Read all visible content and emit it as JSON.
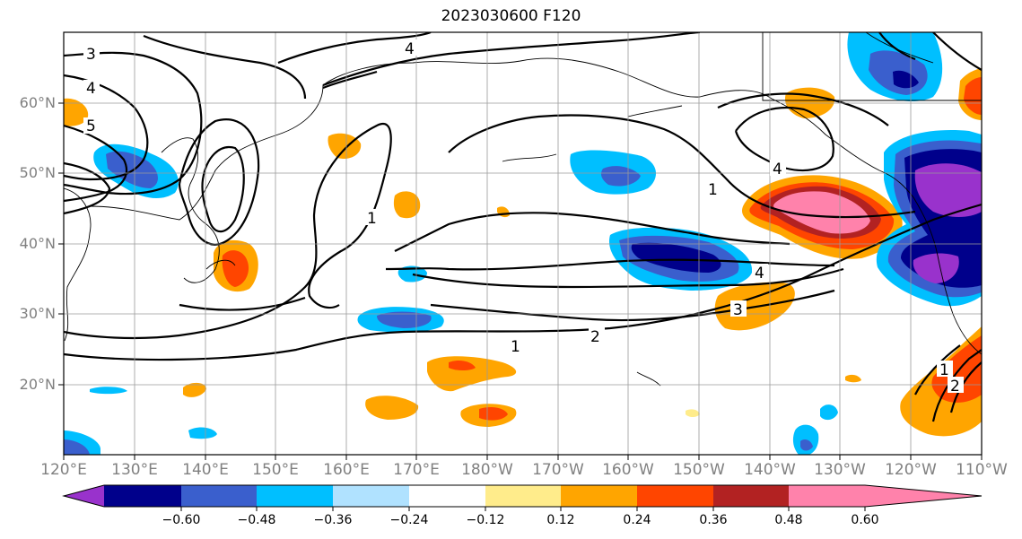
{
  "title": "2023030600 F120",
  "lat_labels": [
    "60°N",
    "50°N",
    "40°N",
    "30°N",
    "20°N"
  ],
  "lon_labels": [
    "120°E",
    "130°E",
    "140°E",
    "150°E",
    "160°E",
    "170°E",
    "180°W",
    "170°W",
    "160°W",
    "150°W",
    "140°W",
    "130°W",
    "120°W",
    "110°W"
  ],
  "contour_labels": [
    "3",
    "4",
    "5",
    "4",
    "1",
    "1",
    "2",
    "1",
    "4",
    "3",
    "4",
    "1",
    "2"
  ],
  "colorbar": {
    "colors": [
      "#9932cc",
      "#00008b",
      "#3a5fcd",
      "#00bfff",
      "#b0e2ff",
      "#ffffff",
      "#ffec8b",
      "#ffa500",
      "#ff4500",
      "#b22222",
      "#ff82ab"
    ],
    "tick_labels": [
      "−0.60",
      "−0.48",
      "−0.36",
      "−0.24",
      "−0.12",
      "0.12",
      "0.24",
      "0.36",
      "0.48",
      "0.60"
    ]
  }
}
